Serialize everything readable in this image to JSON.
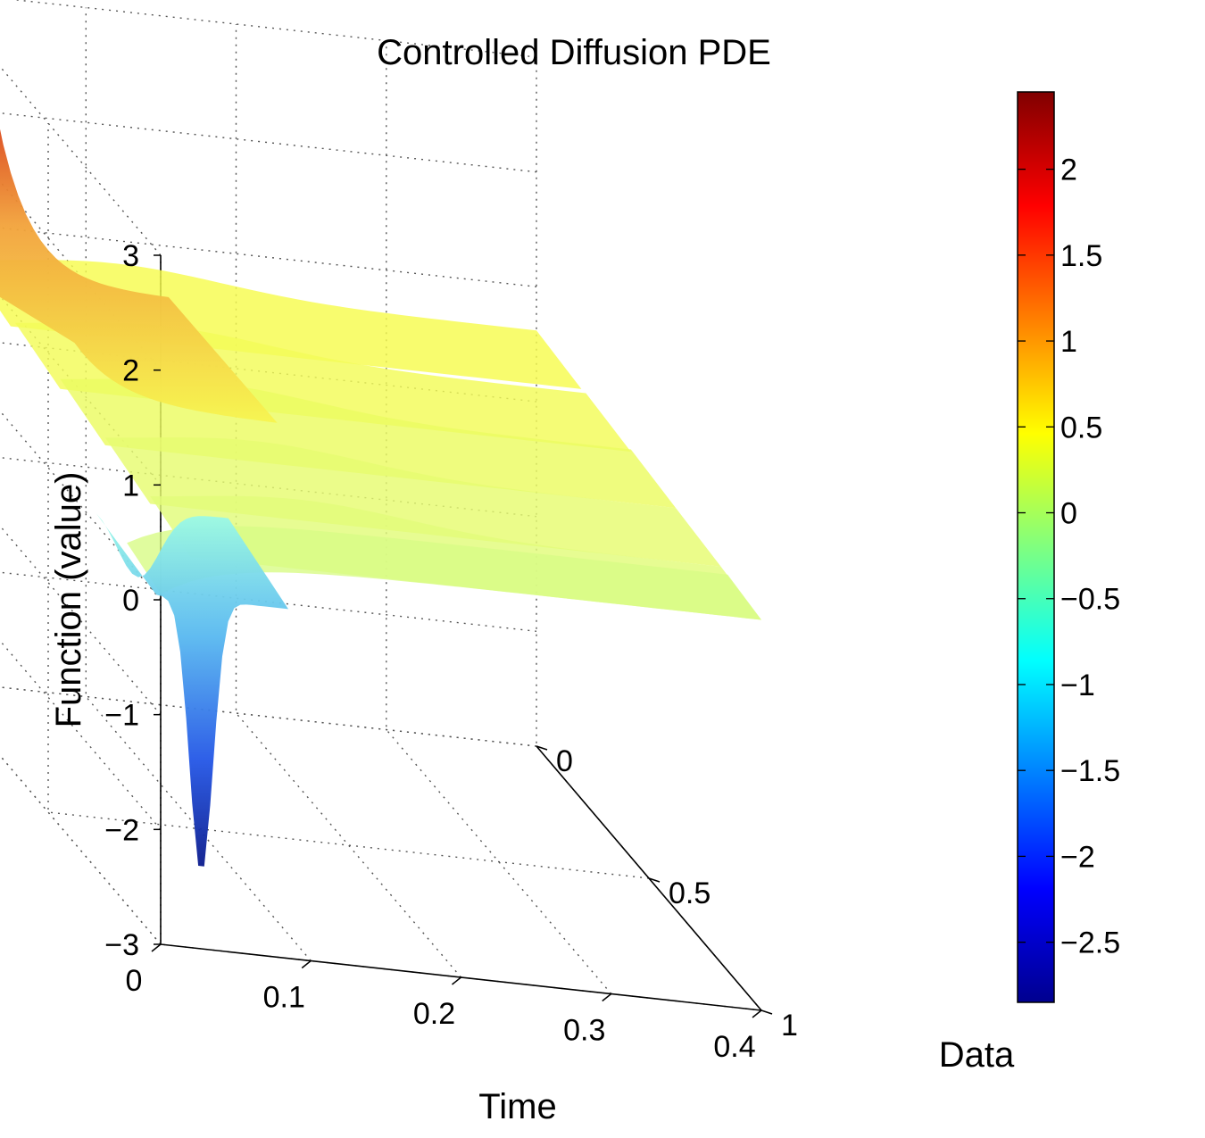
{
  "chart_data": {
    "type": "surface",
    "title": "Controlled Diffusion PDE",
    "xlabel": "Time",
    "ylabel": "Data",
    "zlabel": "Function (value)",
    "x_ticks": [
      "0",
      "0.1",
      "0.2",
      "0.3",
      "0.4"
    ],
    "y_ticks": [
      "0",
      "0.5",
      "1"
    ],
    "z_ticks": [
      "3",
      "2",
      "1",
      "0",
      "−1",
      "−2",
      "−3"
    ],
    "xlim": [
      0,
      0.4
    ],
    "ylim": [
      0,
      1
    ],
    "zlim": [
      -3,
      3
    ],
    "grid": true,
    "colormap": "jet",
    "colorbar": {
      "range": [
        -2.85,
        2.45
      ],
      "ticks": [
        "2",
        "1.5",
        "1",
        "0.5",
        "0",
        "−0.5",
        "−1",
        "−1.5",
        "−2",
        "−2.5"
      ],
      "placement": "right"
    },
    "features": {
      "peak_max": {
        "time": 0.03,
        "data": 0.0,
        "value": 3.1
      },
      "peak_min": {
        "time": 0.03,
        "data": 1.0,
        "value": -2.4
      },
      "plateau_value": 0.5
    }
  }
}
